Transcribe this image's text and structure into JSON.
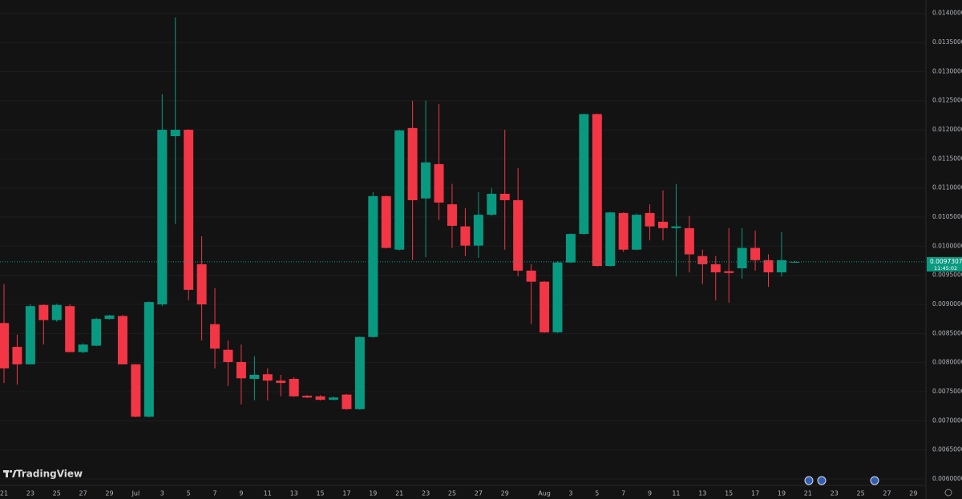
{
  "chart_data": {
    "type": "candlestick",
    "watermark": "TradingView",
    "categories": [
      "21",
      null,
      "23",
      null,
      "25",
      null,
      "27",
      null,
      "29",
      null,
      "Jul",
      null,
      "3",
      null,
      "5",
      null,
      "7",
      null,
      "9",
      null,
      "11",
      null,
      "13",
      null,
      "15",
      null,
      "17",
      null,
      "19",
      null,
      "21",
      null,
      "23",
      null,
      "25",
      null,
      "27",
      null,
      "29",
      null,
      null,
      "Aug",
      null,
      "3",
      null,
      "5",
      null,
      "7",
      null,
      "9",
      null,
      "11",
      null,
      "13",
      null,
      "15",
      null,
      "17",
      null,
      "19",
      null,
      "21",
      null,
      "23",
      null,
      "25",
      null,
      "27",
      null,
      "29"
    ],
    "open": [
      0.00868,
      0.00827,
      0.00797,
      0.00899,
      0.00873,
      0.00897,
      0.00818,
      0.00829,
      0.00875,
      0.0088,
      0.00797,
      0.00707,
      0.009,
      0.01189,
      0.012,
      0.00969,
      0.00866,
      0.00822,
      0.00801,
      0.00772,
      0.0078,
      0.00769,
      0.00772,
      0.00743,
      0.00742,
      0.00736,
      0.00745,
      0.0072,
      0.00844,
      0.01086,
      0.00994,
      0.01203,
      0.01082,
      0.01141,
      0.01072,
      0.01034,
      0.01001,
      0.01054,
      0.0109,
      0.01079,
      0.00958,
      0.00939,
      0.00852,
      0.00972,
      0.01021,
      0.01227,
      0.00966,
      0.01057,
      0.00994,
      0.01057,
      0.01042,
      0.01031,
      0.01031,
      0.00983,
      0.00969,
      0.00957,
      0.00962,
      0.00997,
      0.00976,
      0.00955,
      0.00973,
      null,
      null,
      null,
      null,
      null,
      null,
      null,
      null,
      null
    ],
    "high": [
      0.00935,
      0.00848,
      0.009,
      0.009,
      0.00901,
      0.009,
      0.00833,
      0.00877,
      0.00882,
      0.00882,
      0.00797,
      0.00905,
      0.01261,
      0.01393,
      0.01201,
      0.01017,
      0.00928,
      0.00838,
      0.00831,
      0.00811,
      0.0079,
      0.00779,
      0.00775,
      0.00744,
      0.00744,
      0.00742,
      0.00746,
      0.00845,
      0.01093,
      0.01087,
      0.012,
      0.0125,
      0.0125,
      0.01244,
      0.01107,
      0.01065,
      0.01093,
      0.011,
      0.012,
      0.01134,
      0.00969,
      0.0094,
      0.00974,
      0.01022,
      0.01228,
      0.01228,
      0.01059,
      0.01058,
      0.01056,
      0.01072,
      0.01096,
      0.01107,
      0.01052,
      0.00994,
      0.00983,
      0.01031,
      0.01031,
      0.01027,
      0.00986,
      0.01024,
      0.00975,
      null,
      null,
      null,
      null,
      null,
      null,
      null,
      null,
      null
    ],
    "low": [
      0.00765,
      0.00762,
      0.00797,
      0.00831,
      0.0087,
      0.00818,
      0.00816,
      0.00828,
      0.00874,
      0.00797,
      0.00706,
      0.00706,
      0.00897,
      0.01038,
      0.00907,
      0.00838,
      0.0079,
      0.0076,
      0.00728,
      0.00735,
      0.00735,
      0.00742,
      0.00741,
      0.00739,
      0.00735,
      0.00735,
      0.00719,
      0.00719,
      0.00843,
      0.00996,
      0.00993,
      0.00976,
      0.00981,
      0.01045,
      0.00997,
      0.00983,
      0.0098,
      0.01052,
      0.00994,
      0.00948,
      0.00866,
      0.00851,
      0.00851,
      0.00971,
      0.0102,
      0.00965,
      0.00965,
      0.0099,
      0.00993,
      0.0101,
      0.0101,
      0.00948,
      0.00955,
      0.00935,
      0.00907,
      0.00903,
      0.00944,
      0.00958,
      0.0093,
      0.00948,
      0.00972,
      null,
      null,
      null,
      null,
      null,
      null,
      null,
      null,
      null
    ],
    "close": [
      0.0079,
      0.00797,
      0.00897,
      0.00873,
      0.00899,
      0.00818,
      0.00831,
      0.00875,
      0.00881,
      0.00797,
      0.00707,
      0.00904,
      0.012,
      0.012,
      0.00925,
      0.009,
      0.00824,
      0.00801,
      0.00773,
      0.00779,
      0.00769,
      0.00765,
      0.00742,
      0.0074,
      0.00736,
      0.0074,
      0.0072,
      0.00844,
      0.01086,
      0.00997,
      0.01199,
      0.01079,
      0.01144,
      0.01075,
      0.01035,
      0.01001,
      0.01054,
      0.0109,
      0.01079,
      0.00958,
      0.00939,
      0.00852,
      0.00972,
      0.01021,
      0.01227,
      0.00966,
      0.01058,
      0.00994,
      0.01054,
      0.01034,
      0.01031,
      0.01034,
      0.00986,
      0.00969,
      0.00955,
      0.00954,
      0.00997,
      0.00976,
      0.00955,
      0.00976,
      0.0097307,
      null,
      null,
      null,
      null,
      null,
      null,
      null,
      null,
      null
    ],
    "up_color": "#089981",
    "down_color": "#f23645",
    "last_price": 0.0097307,
    "countdown": "11:45:02",
    "ylim": [
      0.00589,
      0.01423
    ],
    "yticks": [
      {
        "value": 0.006,
        "label": "0.0060000"
      },
      {
        "value": 0.0065,
        "label": "0.0065000"
      },
      {
        "value": 0.007,
        "label": "0.0070000"
      },
      {
        "value": 0.0075,
        "label": "0.0075000"
      },
      {
        "value": 0.008,
        "label": "0.0080000"
      },
      {
        "value": 0.0085,
        "label": "0.0085000"
      },
      {
        "value": 0.009,
        "label": "0.0090000"
      },
      {
        "value": 0.0095,
        "label": "0.0095000"
      },
      {
        "value": 0.01,
        "label": "0.0100000"
      },
      {
        "value": 0.0105,
        "label": "0.0105000"
      },
      {
        "value": 0.011,
        "label": "0.0110000"
      },
      {
        "value": 0.0115,
        "label": "0.0115000"
      },
      {
        "value": 0.012,
        "label": "0.0120000"
      },
      {
        "value": 0.0125,
        "label": "0.0125000"
      },
      {
        "value": 0.013,
        "label": "0.0130000"
      },
      {
        "value": 0.0135,
        "label": "0.0135000"
      },
      {
        "value": 0.014,
        "label": "0.0140000"
      }
    ],
    "grid": true
  }
}
